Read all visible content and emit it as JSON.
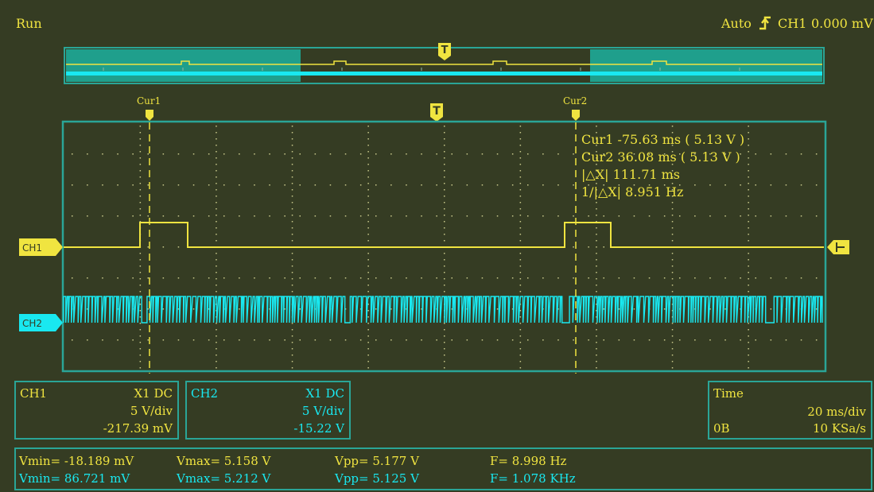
{
  "status": {
    "run_state": "Run",
    "trigger_mode": "Auto",
    "trigger_source": "CH1",
    "trigger_level": "0.000 mV",
    "trigger_edge_icon": "rising-edge-icon"
  },
  "markers": {
    "trigger": "T",
    "cursor1": "Cur1",
    "cursor2": "Cur2",
    "ch1": "CH1",
    "ch2": "CH2"
  },
  "cursor_readout": {
    "line1": "Cur1   -75.63 ms ( 5.13 V )",
    "line2": "Cur2   36.08 ms ( 5.13 V )",
    "line3": "|△X|   111.71 ms",
    "line4": "1/|△X| 8.951 Hz"
  },
  "ch1_panel": {
    "name": "CH1",
    "probe": "X1  DC",
    "scale": "5 V/div",
    "offset": "-217.39 mV"
  },
  "ch2_panel": {
    "name": "CH2",
    "probe": "X1  DC",
    "scale": "5 V/div",
    "offset": "-15.22 V"
  },
  "time_panel": {
    "title": "Time",
    "scale": "20 ms/div",
    "position": "0B",
    "sample_rate": "10 KSa/s"
  },
  "measurements": {
    "ch1": {
      "vmin": "Vmin= -18.189 mV",
      "vmax": "Vmax= 5.158 V",
      "vpp": "Vpp= 5.177 V",
      "freq": "F= 8.998 Hz"
    },
    "ch2": {
      "vmin": "Vmin= 86.721 mV",
      "vmax": "Vmax= 5.212 V",
      "vpp": "Vpp= 5.125 V",
      "freq": "F= 1.078 KHz"
    }
  },
  "colors": {
    "background": "#353c23",
    "border": "#2aa597",
    "ch1": "#f0e440",
    "ch2": "#19e8f0",
    "overview_window": "#1f9f8c"
  }
}
